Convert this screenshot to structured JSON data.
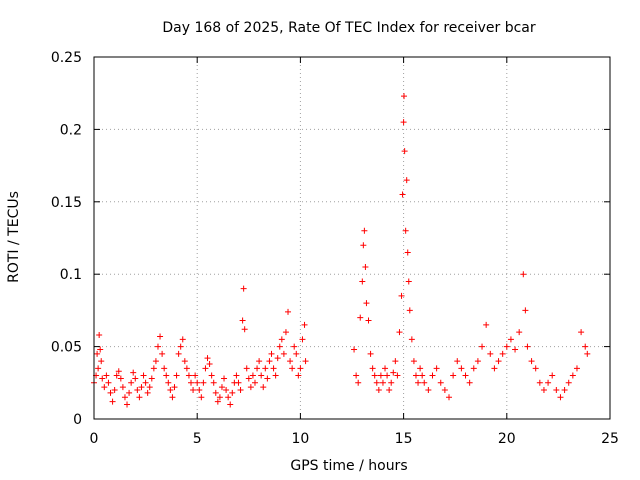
{
  "chart_data": {
    "type": "scatter",
    "title": "Day 168 of 2025, Rate Of TEC Index for receiver bcar",
    "xlabel": "GPS time / hours",
    "ylabel": "ROTI / TECUs",
    "xlim": [
      0,
      25
    ],
    "ylim": [
      0,
      0.25
    ],
    "xticks": [
      0,
      5,
      10,
      15,
      20,
      25
    ],
    "yticks": [
      0,
      0.05,
      0.1,
      0.15,
      0.2,
      0.25
    ],
    "xtick_labels": [
      "0",
      "5",
      "10",
      "15",
      "20",
      "25"
    ],
    "ytick_labels": [
      "0",
      "0.05",
      "0.1",
      "0.15",
      "0.2",
      "0.25"
    ],
    "grid": true,
    "marker": "plus",
    "series": [
      {
        "color": "#ff0000",
        "points": [
          [
            0.0,
            0.025
          ],
          [
            0.1,
            0.03
          ],
          [
            0.15,
            0.045
          ],
          [
            0.2,
            0.035
          ],
          [
            0.25,
            0.058
          ],
          [
            0.3,
            0.048
          ],
          [
            0.35,
            0.04
          ],
          [
            0.4,
            0.028
          ],
          [
            0.5,
            0.022
          ],
          [
            0.6,
            0.03
          ],
          [
            0.7,
            0.025
          ],
          [
            0.8,
            0.018
          ],
          [
            0.9,
            0.012
          ],
          [
            1.0,
            0.02
          ],
          [
            1.1,
            0.03
          ],
          [
            1.2,
            0.033
          ],
          [
            1.3,
            0.028
          ],
          [
            1.4,
            0.022
          ],
          [
            1.5,
            0.015
          ],
          [
            1.6,
            0.01
          ],
          [
            1.7,
            0.018
          ],
          [
            1.8,
            0.025
          ],
          [
            1.9,
            0.032
          ],
          [
            2.0,
            0.028
          ],
          [
            2.1,
            0.02
          ],
          [
            2.2,
            0.015
          ],
          [
            2.3,
            0.022
          ],
          [
            2.4,
            0.03
          ],
          [
            2.5,
            0.025
          ],
          [
            2.6,
            0.018
          ],
          [
            2.7,
            0.022
          ],
          [
            2.8,
            0.028
          ],
          [
            2.9,
            0.035
          ],
          [
            3.0,
            0.04
          ],
          [
            3.1,
            0.05
          ],
          [
            3.2,
            0.057
          ],
          [
            3.3,
            0.045
          ],
          [
            3.4,
            0.035
          ],
          [
            3.5,
            0.03
          ],
          [
            3.6,
            0.025
          ],
          [
            3.7,
            0.02
          ],
          [
            3.8,
            0.015
          ],
          [
            3.9,
            0.022
          ],
          [
            4.0,
            0.03
          ],
          [
            4.1,
            0.045
          ],
          [
            4.2,
            0.05
          ],
          [
            4.3,
            0.055
          ],
          [
            4.4,
            0.04
          ],
          [
            4.5,
            0.035
          ],
          [
            4.6,
            0.03
          ],
          [
            4.7,
            0.025
          ],
          [
            4.8,
            0.02
          ],
          [
            4.9,
            0.03
          ],
          [
            5.0,
            0.025
          ],
          [
            5.1,
            0.02
          ],
          [
            5.2,
            0.015
          ],
          [
            5.3,
            0.025
          ],
          [
            5.4,
            0.035
          ],
          [
            5.5,
            0.042
          ],
          [
            5.6,
            0.038
          ],
          [
            5.7,
            0.03
          ],
          [
            5.8,
            0.025
          ],
          [
            5.9,
            0.018
          ],
          [
            6.0,
            0.012
          ],
          [
            6.1,
            0.015
          ],
          [
            6.2,
            0.022
          ],
          [
            6.3,
            0.028
          ],
          [
            6.4,
            0.02
          ],
          [
            6.5,
            0.015
          ],
          [
            6.6,
            0.01
          ],
          [
            6.7,
            0.018
          ],
          [
            6.8,
            0.025
          ],
          [
            6.9,
            0.03
          ],
          [
            7.0,
            0.025
          ],
          [
            7.1,
            0.02
          ],
          [
            7.2,
            0.068
          ],
          [
            7.25,
            0.09
          ],
          [
            7.3,
            0.062
          ],
          [
            7.4,
            0.035
          ],
          [
            7.5,
            0.028
          ],
          [
            7.6,
            0.022
          ],
          [
            7.7,
            0.03
          ],
          [
            7.8,
            0.025
          ],
          [
            7.9,
            0.035
          ],
          [
            8.0,
            0.04
          ],
          [
            8.1,
            0.03
          ],
          [
            8.2,
            0.022
          ],
          [
            8.3,
            0.035
          ],
          [
            8.4,
            0.028
          ],
          [
            8.5,
            0.04
          ],
          [
            8.6,
            0.045
          ],
          [
            8.7,
            0.035
          ],
          [
            8.8,
            0.03
          ],
          [
            8.9,
            0.042
          ],
          [
            9.0,
            0.05
          ],
          [
            9.1,
            0.055
          ],
          [
            9.2,
            0.045
          ],
          [
            9.3,
            0.06
          ],
          [
            9.4,
            0.074
          ],
          [
            9.5,
            0.04
          ],
          [
            9.6,
            0.035
          ],
          [
            9.7,
            0.05
          ],
          [
            9.8,
            0.045
          ],
          [
            9.9,
            0.03
          ],
          [
            10.0,
            0.035
          ],
          [
            10.1,
            0.055
          ],
          [
            10.2,
            0.065
          ],
          [
            10.25,
            0.04
          ],
          [
            12.6,
            0.048
          ],
          [
            12.7,
            0.03
          ],
          [
            12.8,
            0.025
          ],
          [
            12.9,
            0.07
          ],
          [
            13.0,
            0.095
          ],
          [
            13.05,
            0.12
          ],
          [
            13.1,
            0.13
          ],
          [
            13.15,
            0.105
          ],
          [
            13.2,
            0.08
          ],
          [
            13.3,
            0.068
          ],
          [
            13.4,
            0.045
          ],
          [
            13.5,
            0.035
          ],
          [
            13.6,
            0.03
          ],
          [
            13.7,
            0.025
          ],
          [
            13.8,
            0.02
          ],
          [
            13.9,
            0.03
          ],
          [
            14.0,
            0.025
          ],
          [
            14.1,
            0.035
          ],
          [
            14.2,
            0.03
          ],
          [
            14.3,
            0.02
          ],
          [
            14.4,
            0.025
          ],
          [
            14.5,
            0.032
          ],
          [
            14.6,
            0.04
          ],
          [
            14.7,
            0.03
          ],
          [
            14.8,
            0.06
          ],
          [
            14.9,
            0.085
          ],
          [
            14.95,
            0.155
          ],
          [
            15.0,
            0.205
          ],
          [
            15.02,
            0.223
          ],
          [
            15.05,
            0.185
          ],
          [
            15.1,
            0.13
          ],
          [
            15.15,
            0.165
          ],
          [
            15.2,
            0.115
          ],
          [
            15.25,
            0.095
          ],
          [
            15.3,
            0.075
          ],
          [
            15.4,
            0.055
          ],
          [
            15.5,
            0.04
          ],
          [
            15.6,
            0.03
          ],
          [
            15.7,
            0.025
          ],
          [
            15.8,
            0.035
          ],
          [
            15.9,
            0.03
          ],
          [
            16.0,
            0.025
          ],
          [
            16.2,
            0.02
          ],
          [
            16.4,
            0.03
          ],
          [
            16.6,
            0.035
          ],
          [
            16.8,
            0.025
          ],
          [
            17.0,
            0.02
          ],
          [
            17.2,
            0.015
          ],
          [
            17.4,
            0.03
          ],
          [
            17.6,
            0.04
          ],
          [
            17.8,
            0.035
          ],
          [
            18.0,
            0.03
          ],
          [
            18.2,
            0.025
          ],
          [
            18.4,
            0.035
          ],
          [
            18.6,
            0.04
          ],
          [
            18.8,
            0.05
          ],
          [
            19.0,
            0.065
          ],
          [
            19.2,
            0.045
          ],
          [
            19.4,
            0.035
          ],
          [
            19.6,
            0.04
          ],
          [
            19.8,
            0.045
          ],
          [
            20.0,
            0.05
          ],
          [
            20.2,
            0.055
          ],
          [
            20.4,
            0.048
          ],
          [
            20.6,
            0.06
          ],
          [
            20.8,
            0.1
          ],
          [
            20.9,
            0.075
          ],
          [
            21.0,
            0.05
          ],
          [
            21.2,
            0.04
          ],
          [
            21.4,
            0.035
          ],
          [
            21.6,
            0.025
          ],
          [
            21.8,
            0.02
          ],
          [
            22.0,
            0.025
          ],
          [
            22.2,
            0.03
          ],
          [
            22.4,
            0.02
          ],
          [
            22.6,
            0.015
          ],
          [
            22.8,
            0.02
          ],
          [
            23.0,
            0.025
          ],
          [
            23.2,
            0.03
          ],
          [
            23.4,
            0.035
          ],
          [
            23.6,
            0.06
          ],
          [
            23.8,
            0.05
          ],
          [
            23.9,
            0.045
          ]
        ]
      }
    ]
  }
}
